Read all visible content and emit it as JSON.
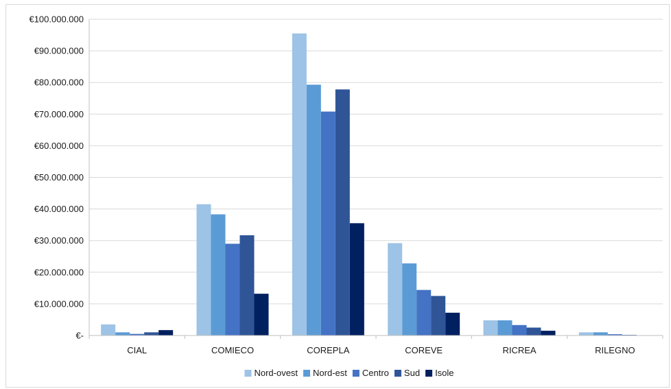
{
  "chart_data": {
    "type": "bar",
    "categories": [
      "CIAL",
      "COMIECO",
      "COREPLA",
      "COREVE",
      "RICREA",
      "RILEGNO"
    ],
    "series": [
      {
        "name": "Nord-ovest",
        "color": "#9dc3e6",
        "values": [
          3500000,
          41500000,
          95500000,
          29200000,
          4800000,
          1000000
        ]
      },
      {
        "name": "Nord-est",
        "color": "#5b9bd5",
        "values": [
          1000000,
          38300000,
          79300000,
          22800000,
          4800000,
          1000000
        ]
      },
      {
        "name": "Centro",
        "color": "#4472c4",
        "values": [
          500000,
          29000000,
          70800000,
          14400000,
          3300000,
          400000
        ]
      },
      {
        "name": "Sud",
        "color": "#2f5597",
        "values": [
          1000000,
          31700000,
          77800000,
          12500000,
          2500000,
          200000
        ]
      },
      {
        "name": "Isole",
        "color": "#002060",
        "values": [
          1700000,
          13200000,
          35500000,
          7200000,
          1500000,
          100000
        ]
      }
    ],
    "ylim": [
      0,
      100000000
    ],
    "y_ticks": [
      {
        "value": 0,
        "label": "€-"
      },
      {
        "value": 10000000,
        "label": "€10.000.000"
      },
      {
        "value": 20000000,
        "label": "€20.000.000"
      },
      {
        "value": 30000000,
        "label": "€30.000.000"
      },
      {
        "value": 40000000,
        "label": "€40.000.000"
      },
      {
        "value": 50000000,
        "label": "€50.000.000"
      },
      {
        "value": 60000000,
        "label": "€60.000.000"
      },
      {
        "value": 70000000,
        "label": "€70.000.000"
      },
      {
        "value": 80000000,
        "label": "€80.000.000"
      },
      {
        "value": 90000000,
        "label": "€90.000.000"
      },
      {
        "value": 100000000,
        "label": "€100.000.000"
      }
    ],
    "grid": true,
    "legend_position": "bottom",
    "gridline_color": "#d9d9d9",
    "axis_color": "#bfbfbf"
  }
}
